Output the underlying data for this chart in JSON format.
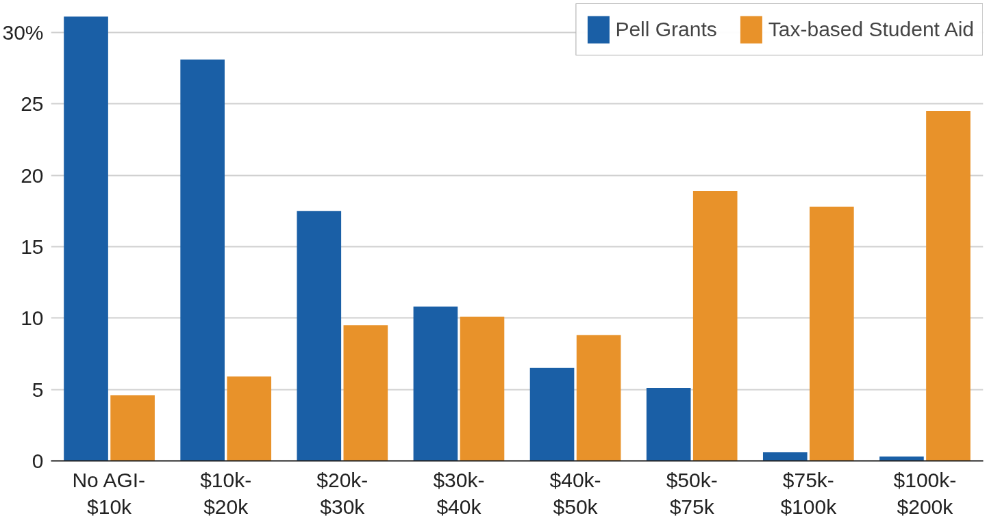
{
  "chart_data": {
    "type": "bar",
    "categories": [
      "No AGI-\n$10k",
      "$10k-\n$20k",
      "$20k-\n$30k",
      "$30k-\n$40k",
      "$40k-\n$50k",
      "$50k-\n$75k",
      "$75k-\n$100k",
      "$100k-\n$200k"
    ],
    "series": [
      {
        "name": "Pell Grants",
        "color": "#1a5fa6",
        "values": [
          31.1,
          28.1,
          17.5,
          10.8,
          6.5,
          5.1,
          0.6,
          0.3
        ]
      },
      {
        "name": "Tax-based Student Aid",
        "color": "#e8922a",
        "values": [
          4.6,
          5.9,
          9.5,
          10.1,
          8.8,
          18.9,
          17.8,
          24.5
        ]
      }
    ],
    "ylim": [
      0,
      32
    ],
    "yticks": [
      0,
      5,
      10,
      15,
      20,
      25,
      {
        "value": 30,
        "label": "30%"
      }
    ],
    "grid": "y",
    "legend": "top right"
  }
}
